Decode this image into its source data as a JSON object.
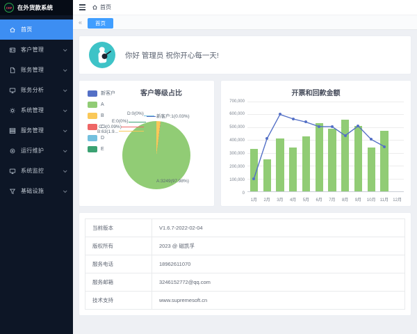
{
  "app": {
    "logo_text": "CKF",
    "title": "在外货款系统"
  },
  "sidebar": {
    "items": [
      {
        "id": "home",
        "label": "首页",
        "icon": "home-icon",
        "active": true,
        "chevron": false
      },
      {
        "id": "customer",
        "label": "客户管理",
        "icon": "id-card-icon",
        "active": false,
        "chevron": true
      },
      {
        "id": "accounting",
        "label": "账务管理",
        "icon": "document-icon",
        "active": false,
        "chevron": true
      },
      {
        "id": "analysis",
        "label": "账务分析",
        "icon": "monitor-icon",
        "active": false,
        "chevron": true
      },
      {
        "id": "system",
        "label": "系统管理",
        "icon": "gear-icon",
        "active": false,
        "chevron": true
      },
      {
        "id": "service",
        "label": "服务管理",
        "icon": "server-icon",
        "active": false,
        "chevron": true
      },
      {
        "id": "ops",
        "label": "运行维护",
        "icon": "circle-icon",
        "active": false,
        "chevron": true
      },
      {
        "id": "sysmon",
        "label": "系统监控",
        "icon": "display-icon",
        "active": false,
        "chevron": true
      },
      {
        "id": "infra",
        "label": "基础设施",
        "icon": "funnel-icon",
        "active": false,
        "chevron": true
      }
    ]
  },
  "header": {
    "breadcrumb_home": "首页"
  },
  "tabbar": {
    "collapse_icon": "«",
    "tabs": [
      {
        "label": "首页",
        "active": true
      }
    ]
  },
  "greeting": {
    "text": "你好 管理员 祝你开心每一天!"
  },
  "chart_data": [
    {
      "type": "pie",
      "title": "客户等级占比",
      "legend_position": "left",
      "legend": [
        "新客户",
        "A",
        "B",
        "C",
        "D",
        "E"
      ],
      "series": [
        {
          "name": "新客户",
          "value": 1,
          "pct": 0.03,
          "color": "#5470c6",
          "label": "新客户:1(0.03%)"
        },
        {
          "name": "A",
          "value": 3249,
          "pct": 97.98,
          "color": "#91cc75",
          "label": "A:3249(97.98%)"
        },
        {
          "name": "B",
          "value": 63,
          "pct": 1.9,
          "color": "#fac858",
          "label": "B:63(1.9..."
        },
        {
          "name": "C",
          "value": 3,
          "pct": 0.09,
          "color": "#ee6666",
          "label": "C:3(0.09%)"
        },
        {
          "name": "D",
          "value": 0,
          "pct": 0,
          "color": "#73c0de",
          "label": "D:0(0%)"
        },
        {
          "name": "E",
          "value": 0,
          "pct": 0,
          "color": "#3ba272",
          "label": "E:0(0%)"
        }
      ]
    },
    {
      "type": "bar+line",
      "title": "开票和回款金额",
      "categories": [
        "1月",
        "2月",
        "3月",
        "4月",
        "5月",
        "6月",
        "7月",
        "8月",
        "9月",
        "10月",
        "11月",
        "12月"
      ],
      "series": [
        {
          "name": "开票",
          "type": "bar",
          "color": "#91cc75",
          "values": [
            330000,
            250000,
            410000,
            340000,
            430000,
            530000,
            490000,
            560000,
            510000,
            340000,
            470000,
            null
          ]
        },
        {
          "name": "回款",
          "type": "line",
          "color": "#5470c6",
          "values": [
            100000,
            410000,
            600000,
            565000,
            540000,
            505000,
            505000,
            435000,
            510000,
            405000,
            350000,
            null
          ]
        }
      ],
      "ylim": [
        0,
        700000
      ],
      "y_ticks": [
        "0",
        "100,000",
        "200,000",
        "300,000",
        "400,000",
        "500,000",
        "600,000",
        "700,000"
      ],
      "grid": true
    }
  ],
  "info_table": {
    "rows": [
      {
        "label": "当前版本",
        "value": "V1.6.7-2022-02-04"
      },
      {
        "label": "版权所有",
        "value": "2023 @ 磁凯孚"
      },
      {
        "label": "服务电话",
        "value": "18962611070"
      },
      {
        "label": "服务邮箱",
        "value": "3246152772@qq.com"
      },
      {
        "label": "技术支持",
        "value": "www.supremesoft.cn"
      }
    ]
  },
  "colors": {
    "accent": "#409eff",
    "active_menu": "#3d8ef2",
    "sidebar_bg": "#0d1626",
    "sidebar_header_bg": "#060c16",
    "avatar_bg": "#3ec3c7",
    "logo_ring": "#2aa84a",
    "logo_text_color": "#e8434a"
  }
}
